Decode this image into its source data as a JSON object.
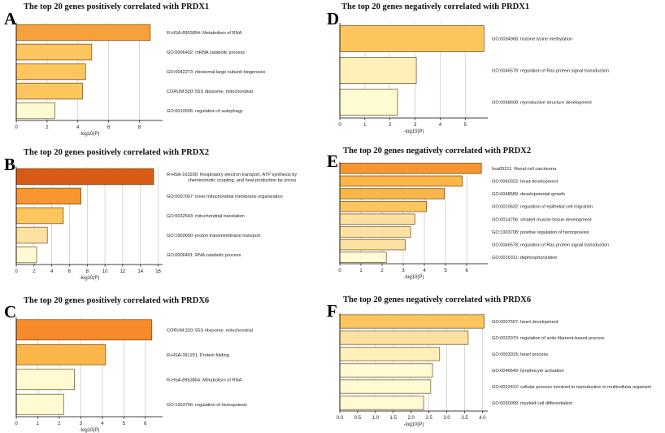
{
  "chart_data": [
    {
      "type": "bar",
      "orientation": "horizontal",
      "letter": "A",
      "title": "The top 20 genes positively correlated with PRDX1",
      "xlabel": "-log10(P)",
      "xlim": [
        0,
        9.5
      ],
      "ticks": [
        "0",
        "2",
        "4",
        "6",
        "8"
      ],
      "categories": [
        "R-HSA-8953854: Metabolism of RNA",
        "GO:0006402: mRNA catabolic process",
        "GO:0042273: ribosomal large subunit biogenesis",
        "CORUM:320: 55S ribosome, mitochondrial",
        "GO:0010506: regulation of autophagy"
      ],
      "values": [
        8.7,
        4.9,
        4.5,
        4.3,
        2.5
      ],
      "colors": [
        "#f7a13a",
        "#fcc55d",
        "#fcc55d",
        "#fcc55d",
        "#fefbd2"
      ]
    },
    {
      "type": "bar",
      "orientation": "horizontal",
      "letter": "B",
      "title": "The top 20 genes positively correlated with PRDX2",
      "xlabel": "-log10(P)",
      "xlim": [
        0,
        16.5
      ],
      "ticks": [
        "0",
        "2",
        "4",
        "6",
        "8",
        "10",
        "12",
        "14",
        "16"
      ],
      "categories": [
        "R-HSA-163200: Respiratory electron transport, ATP synthesis by|chemiosmotic coupling, and heat production by uncou",
        "GO:0007007: inner mitochondrial membrane organization",
        "GO:0032543: mitochondrial translation",
        "GO:1902600: proton transmembrane transport",
        "GO:0006401: RNA catabolic process"
      ],
      "values": [
        15.5,
        7.3,
        5.3,
        3.5,
        2.3
      ],
      "colors": [
        "#d95a16",
        "#f7962e",
        "#fcc55d",
        "#fde1a0",
        "#fefbd2"
      ]
    },
    {
      "type": "bar",
      "orientation": "horizontal",
      "letter": "C",
      "title": "The top 20 genes positively correlated with PRDX6",
      "xlabel": "-log10(P)",
      "xlim": [
        0,
        6.8
      ],
      "ticks": [
        "0",
        "1",
        "2",
        "3",
        "4",
        "5",
        "6"
      ],
      "categories": [
        "CORUM:320: 55S ribosome, mitochondrial",
        "R-HSA-391251: Protein folding",
        "R-HSA-8953854: Metabolism of RNA",
        "GO:1903706: regulation of hemopoiesis"
      ],
      "values": [
        6.3,
        4.15,
        2.7,
        2.2
      ],
      "colors": [
        "#f78a2a",
        "#fcb548",
        "#fefbd2",
        "#fefbd2"
      ]
    },
    {
      "type": "bar",
      "orientation": "horizontal",
      "letter": "D",
      "title": "The top 20 genes negatively correlated with PRDX1",
      "xlabel": "-log10(P)",
      "xlim": [
        0,
        5.9
      ],
      "ticks": [
        "0",
        "1",
        "2",
        "3",
        "4",
        "5"
      ],
      "categories": [
        "GO:0034968: histone lysine methylation",
        "GO:0046578: regulation of Ras protein signal transduction",
        "GO:0048608: reproductive structure development"
      ],
      "values": [
        5.75,
        3.05,
        2.3
      ],
      "colors": [
        "#fcc55d",
        "#fef0b8",
        "#fefbd2"
      ]
    },
    {
      "type": "bar",
      "orientation": "horizontal",
      "letter": "E",
      "title": "The top 20 genes negatively correlated with PRDX2",
      "xlabel": "-log10(P)",
      "xlim": [
        0,
        7
      ],
      "ticks": [
        "0",
        "1",
        "2",
        "3",
        "4",
        "5",
        "6"
      ],
      "categories": [
        "hsa05211: Renal cell carcinoma",
        "GO:0060322: head development",
        "GO:0048589: developmental growth",
        "GO:0010632: regulation of epithelial cell migration",
        "GO:0014706: striated muscle tissue development",
        "GO:1903708: positive regulation of hemopoiesis",
        "GO:0046578: regulation of Ras protein signal transduction",
        "GO:0016311: dephosphorylation"
      ],
      "values": [
        6.7,
        5.8,
        4.95,
        4.1,
        3.55,
        3.35,
        3.1,
        2.2
      ],
      "colors": [
        "#f7962e",
        "#fcb548",
        "#fcb548",
        "#fcc55d",
        "#fde1a0",
        "#fde1a0",
        "#fde1a0",
        "#fefbd2"
      ]
    },
    {
      "type": "bar",
      "orientation": "horizontal",
      "letter": "F",
      "title": "The top 20 genes negatively correlated with PRDX6",
      "xlabel": "-log10(P)",
      "xlim": [
        0,
        4.15
      ],
      "ticks": [
        "0.0",
        "0.5",
        "1.0",
        "1.5",
        "2.0",
        "2.5",
        "3.0",
        "3.5",
        "4.0"
      ],
      "categories": [
        "GO:0007507: heart development",
        "GO:0032970: regulation of actin filament-based process",
        "GO:0003015: heart process",
        "GO:0046649: lymphocyte activation",
        "GO:0022412: cellular process involved in reproduction in multicellular organism",
        "GO:0030099: myeloid cell differentiation"
      ],
      "values": [
        4.05,
        3.6,
        2.8,
        2.6,
        2.55,
        2.35
      ],
      "colors": [
        "#fcc55d",
        "#fde1a0",
        "#fef0b8",
        "#fefbd2",
        "#fefbd2",
        "#fefbd2"
      ]
    }
  ]
}
